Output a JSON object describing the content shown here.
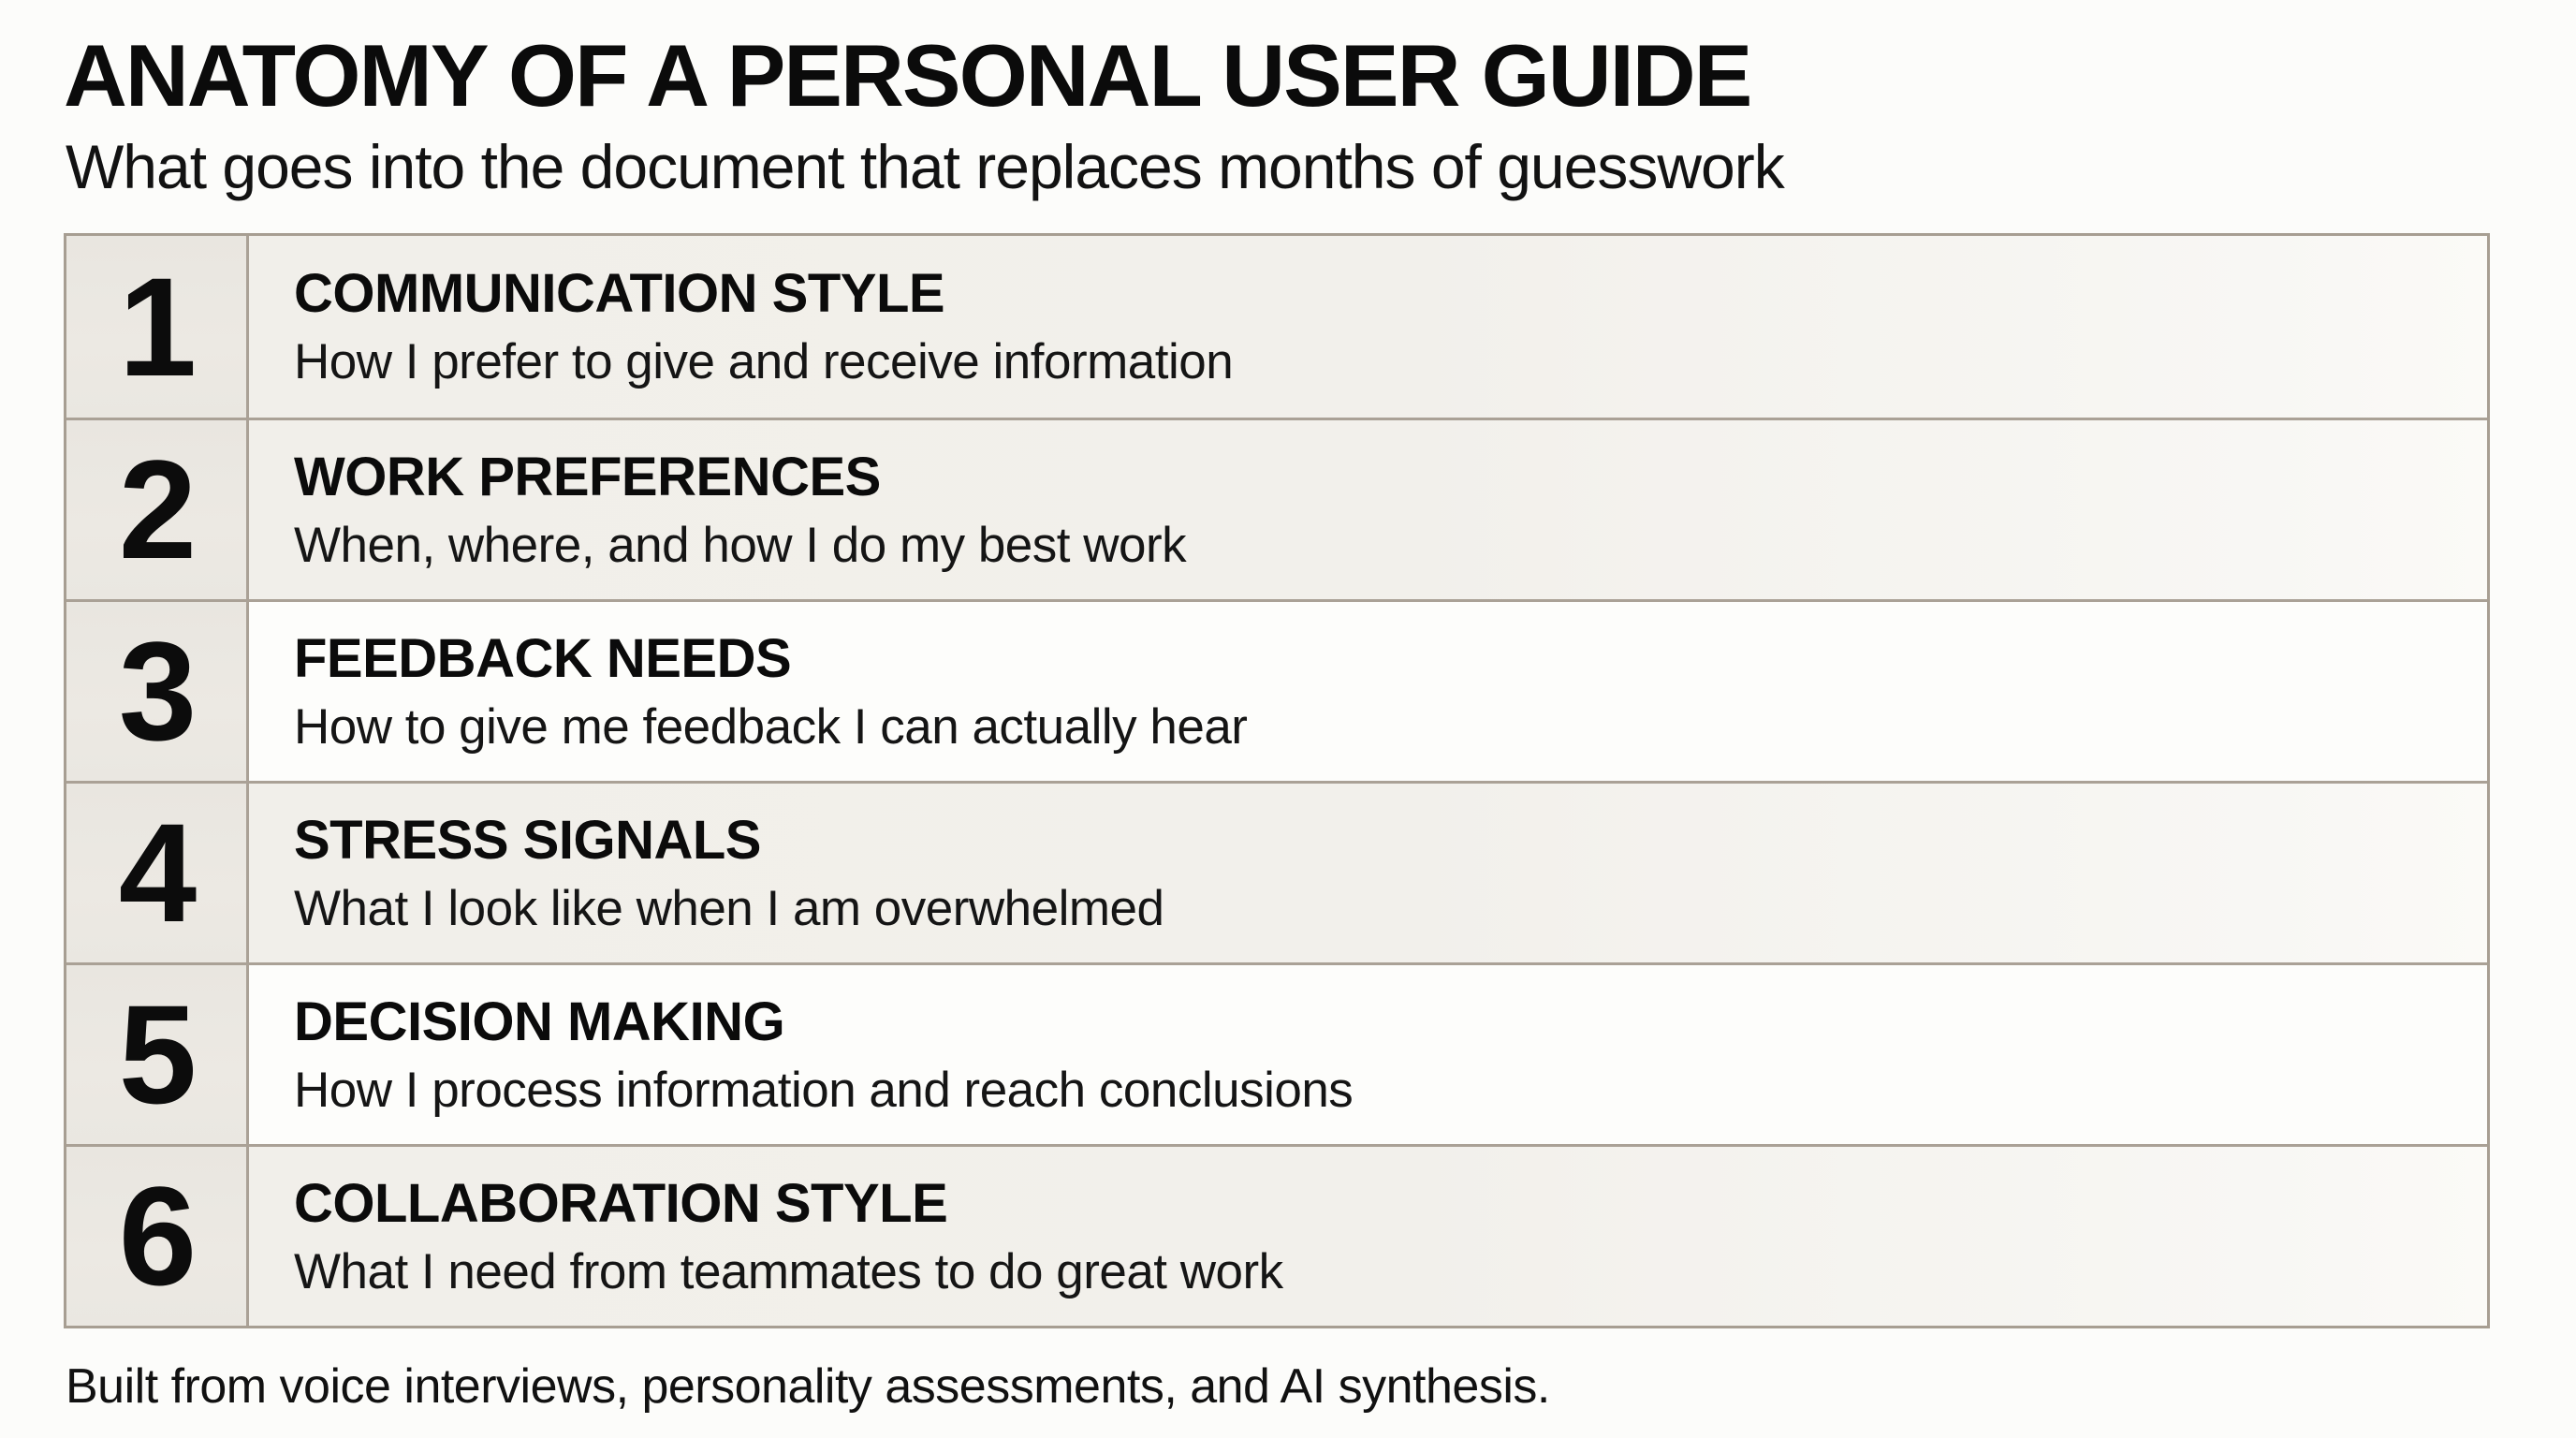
{
  "page": {
    "title": "ANATOMY OF A PERSONAL USER GUIDE",
    "subtitle": "What goes into the document that replaces months of guesswork",
    "footer": "Built from voice interviews, personality assessments, and AI synthesis."
  },
  "table": {
    "rows": [
      {
        "number": "1",
        "heading": "COMMUNICATION STYLE",
        "description": "How I prefer to give and receive information",
        "tone": "beige"
      },
      {
        "number": "2",
        "heading": "WORK PREFERENCES",
        "description": "When, where, and how I do my best work",
        "tone": "beige"
      },
      {
        "number": "3",
        "heading": "FEEDBACK NEEDS",
        "description": "How to give me feedback I can actually hear",
        "tone": "white"
      },
      {
        "number": "4",
        "heading": "STRESS SIGNALS",
        "description": "What I look like when I am overwhelmed",
        "tone": "beige"
      },
      {
        "number": "5",
        "heading": "DECISION MAKING",
        "description": "How I process information and reach conclusions",
        "tone": "white"
      },
      {
        "number": "6",
        "heading": "COLLABORATION STYLE",
        "description": "What I need from teammates to do great work",
        "tone": "beige"
      }
    ]
  },
  "colors": {
    "page_background": "#fcfcfa",
    "row_beige": "#f1efea",
    "row_white": "#fdfdfb",
    "number_column": "#ebe8e2",
    "border": "#a79e92",
    "text": "#0d0d0d"
  }
}
